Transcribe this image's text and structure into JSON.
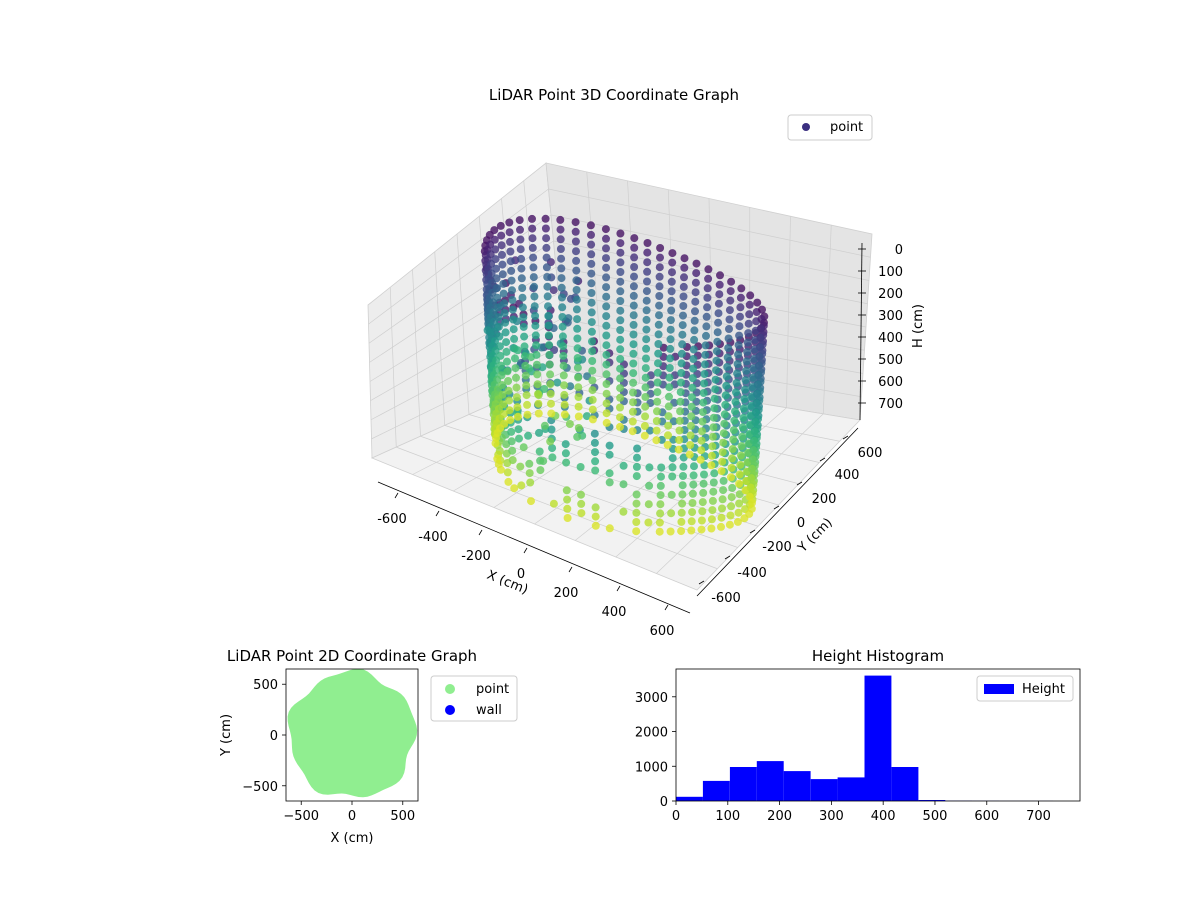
{
  "colors": {
    "viridis_dark": "#440154",
    "viridis_mid": "#21918c",
    "viridis_light": "#7ad151",
    "point_2d": "#90ee90",
    "wall": "#0000ff",
    "hist_bar": "#0000ff"
  },
  "chart_data": [
    {
      "type": "scatter",
      "projection": "3d",
      "title": "LiDAR Point 3D Coordinate Graph",
      "xlabel": "X (cm)",
      "ylabel": "Y (cm)",
      "zlabel": "H (cm)",
      "xlim": [
        -650,
        650
      ],
      "ylim": [
        -650,
        650
      ],
      "zlim": [
        780,
        0
      ],
      "zaxis_inverted": true,
      "xticks": [
        "-600",
        "-400",
        "-200",
        "0",
        "200",
        "400",
        "600"
      ],
      "yticks": [
        "-600",
        "-400",
        "-200",
        "0",
        "200",
        "400",
        "600"
      ],
      "zticks": [
        "0",
        "100",
        "200",
        "300",
        "400",
        "500",
        "600",
        "700"
      ],
      "legend": [
        {
          "label": "point",
          "color": "#3b2f80"
        }
      ],
      "legend_position": "top-right",
      "colormap": "viridis",
      "grid": true,
      "description_of_points": "ring-shaped wall of points around the origin, radius about 600 cm, heights 0 to 700 cm"
    },
    {
      "type": "scatter",
      "title": "LiDAR Point 2D Coordinate Graph",
      "xlabel": "X (cm)",
      "ylabel": "Y (cm)",
      "xlim": [
        -650,
        650
      ],
      "ylim": [
        -650,
        650
      ],
      "xticks": [
        "−500",
        "0",
        "500"
      ],
      "yticks": [
        "−500",
        "0",
        "500"
      ],
      "series": [
        {
          "name": "point",
          "color": "#90ee90",
          "shape": "filled disc",
          "center": [
            0,
            0
          ],
          "radius": 620
        },
        {
          "name": "wall",
          "color": "#0000ff",
          "points": []
        }
      ],
      "legend_position": "outside-right"
    },
    {
      "type": "bar",
      "subtype": "histogram",
      "title": "Height Histogram",
      "xlim": [
        0,
        780
      ],
      "ylim": [
        0,
        3800
      ],
      "xticks": [
        "0",
        "100",
        "200",
        "300",
        "400",
        "500",
        "600",
        "700"
      ],
      "yticks": [
        "0",
        "1000",
        "2000",
        "3000"
      ],
      "bin_edges": [
        0,
        52,
        104,
        156,
        208,
        260,
        312,
        364,
        416,
        468,
        520,
        572,
        624,
        676,
        728,
        780
      ],
      "counts": [
        120,
        580,
        980,
        1150,
        860,
        630,
        680,
        3610,
        980,
        30,
        8,
        5,
        3,
        2,
        1
      ],
      "legend": [
        {
          "label": "Height",
          "color": "#0000ff"
        }
      ],
      "legend_position": "top-right"
    }
  ]
}
